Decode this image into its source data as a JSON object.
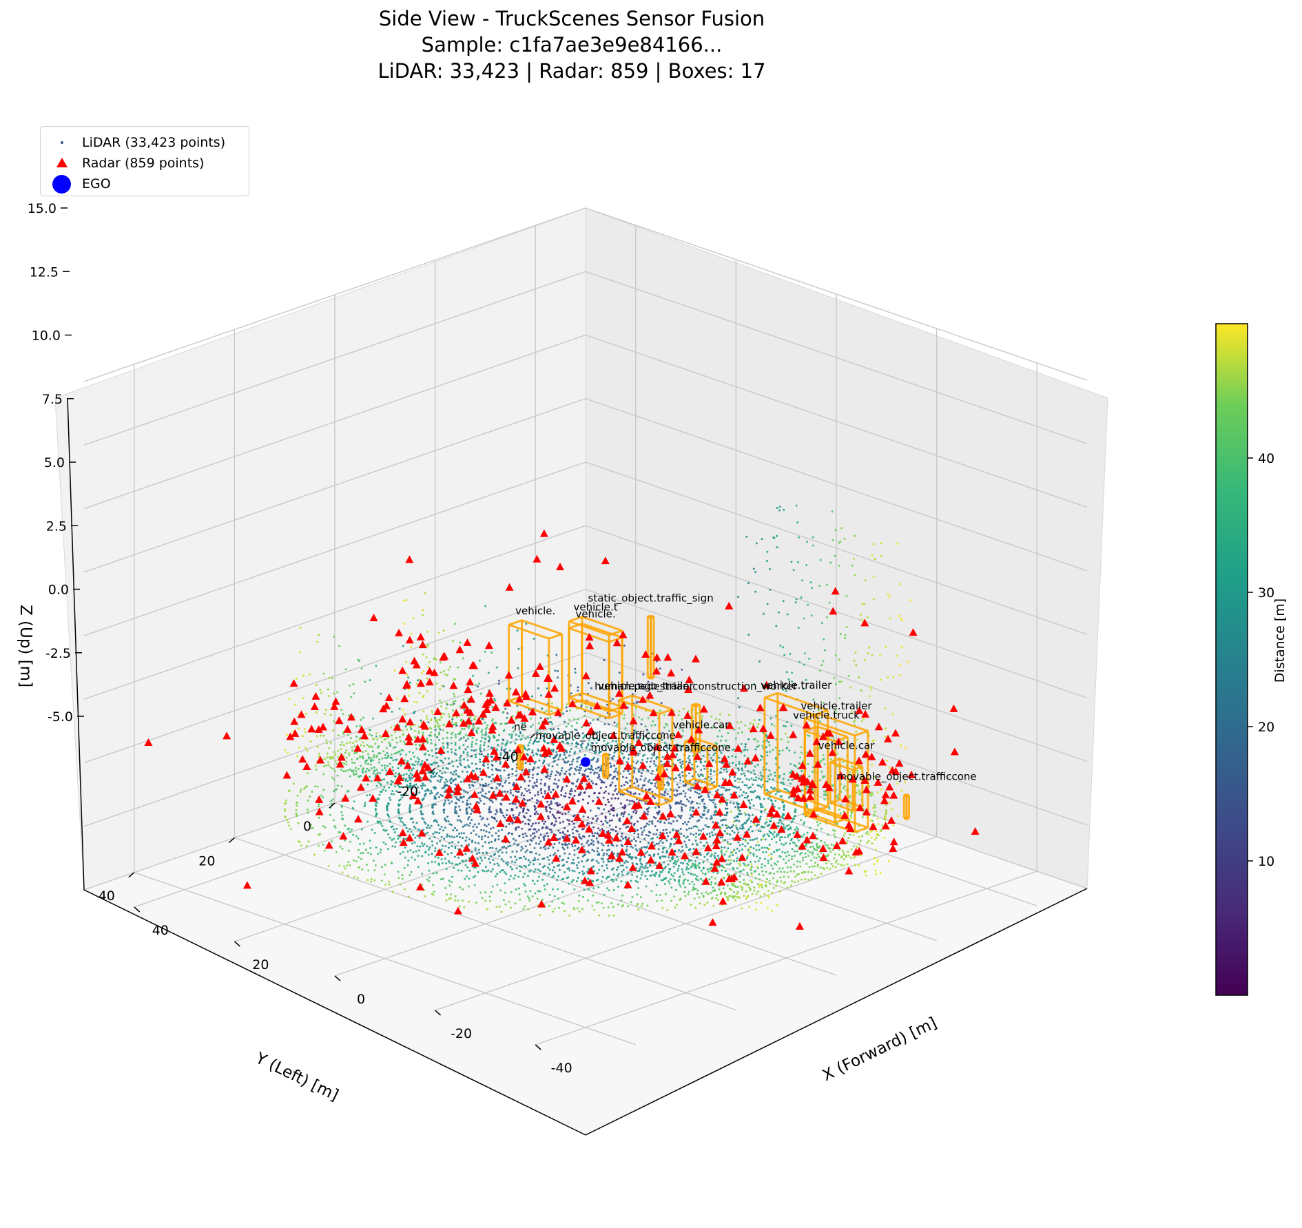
{
  "chart_data": {
    "type": "scatter",
    "title": "Side View - TruckScenes Sensor Fusion",
    "subtitle_1": "Sample: c1fa7ae3e9e84166...",
    "subtitle_2": "LiDAR: 33,423 | Radar: 859 | Boxes: 17",
    "xlabel": "X (Forward) [m]",
    "ylabel": "Y (Left) [m]",
    "zlabel": "Z (Up) [m]",
    "xlim": [
      -50,
      50
    ],
    "ylim": [
      -50,
      50
    ],
    "zlim": [
      -5,
      15
    ],
    "x_ticks": [
      "-40",
      "-20",
      "0",
      "20",
      "40"
    ],
    "y_ticks": [
      "-40",
      "-20",
      "0",
      "20",
      "40"
    ],
    "z_ticks": [
      "-5.0",
      "-2.5",
      "0.0",
      "2.5",
      "5.0",
      "7.5",
      "10.0",
      "12.5",
      "15.0"
    ],
    "grid": true,
    "legend_position": "top-left",
    "legend": [
      {
        "label": "LiDAR (33,423 points)",
        "marker": "dot",
        "color": "#3b528b"
      },
      {
        "label": "Radar (859 points)",
        "marker": "triangle",
        "color": "#ff0000"
      },
      {
        "label": "EGO",
        "marker": "circle",
        "color": "#0000ff"
      }
    ],
    "colorbar": {
      "label": "Distance [m]",
      "range": [
        0,
        50
      ],
      "ticks": [
        "10",
        "20",
        "30",
        "40"
      ],
      "colormap": "viridis"
    },
    "series": [
      {
        "name": "LiDAR (33,423 points)",
        "count": 33423,
        "color_by": "distance"
      },
      {
        "name": "Radar (859 points)",
        "count": 859,
        "color": "#ff0000"
      },
      {
        "name": "EGO",
        "x": 0,
        "y": 0,
        "z": 0,
        "color": "#0000ff"
      }
    ],
    "box_color": "#ffa500",
    "boxes": [
      {
        "label": "human.pedestrian.construction_worker",
        "x": -10,
        "y": -12,
        "z": 1.2
      },
      {
        "label": "vehicle.ego_trailer",
        "x": -10,
        "y": -2,
        "z": 1.0
      },
      {
        "label": "vehicle.trailer",
        "x": -40,
        "y": -10,
        "z": 1.6
      },
      {
        "label": "vehicle.car",
        "x": -40,
        "y": -12,
        "z": 1.0
      },
      {
        "label": "vehicle.truck",
        "x": -38,
        "y": -10,
        "z": 1.4
      },
      {
        "label": "vehicle.trailer",
        "x": -30,
        "y": -12,
        "z": 1.6
      },
      {
        "label": "movable_object.trafficcone",
        "x": -48,
        "y": -16,
        "z": 0.4
      },
      {
        "label": "vehicle.car",
        "x": -18,
        "y": -5,
        "z": 0.8
      },
      {
        "label": "movable_object.trafficcone",
        "x": -15,
        "y": 0,
        "z": 0.4
      },
      {
        "label": "movable_object.trafficcone",
        "x": -6,
        "y": 2,
        "z": 0.4
      },
      {
        "label": "static_object.traffic_sign",
        "x": 12,
        "y": -25,
        "z": 2.0
      },
      {
        "label": "vehicle.",
        "x": 18,
        "y": -20,
        "z": 1.0
      },
      {
        "label": "vehicle.t",
        "x": 20,
        "y": -22,
        "z": 1.0
      },
      {
        "label": "vehicle.",
        "x": 25,
        "y": -15,
        "z": 1.0
      },
      {
        "label": "ne",
        "x": 5,
        "y": 8,
        "z": 0.4
      }
    ]
  }
}
